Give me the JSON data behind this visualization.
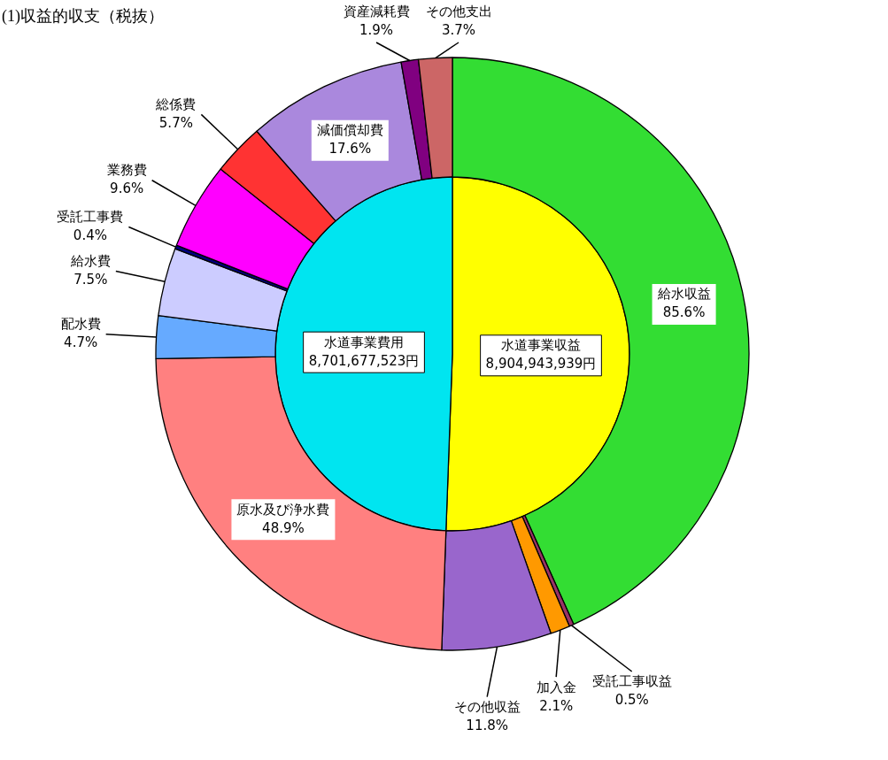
{
  "chart_data": [
    {
      "type": "pie",
      "title": "(1)収益的収支（税抜）",
      "categories": [
        "水道事業収益",
        "水道事業費用"
      ],
      "values": [
        8904943939,
        8701677523
      ],
      "colors": [
        "#ffff00",
        "#00e5f0"
      ],
      "value_labels": [
        "8,904,943,939円",
        "8,701,677,523円"
      ]
    },
    {
      "type": "donut",
      "categories": [
        "給水収益",
        "受託工事収益",
        "加入金",
        "その他収益"
      ],
      "values": [
        85.6,
        0.5,
        2.1,
        11.8
      ],
      "colors": [
        "#33dd33",
        "#993366",
        "#ff9900",
        "#9966cc"
      ],
      "value_labels": [
        "85.6%",
        "0.5%",
        "2.1%",
        "11.8%"
      ]
    },
    {
      "type": "donut",
      "categories": [
        "原水及び浄水費",
        "配水費",
        "給水費",
        "受託工事費",
        "業務費",
        "総係費",
        "減価償却費",
        "資産減耗費",
        "その他支出"
      ],
      "values": [
        48.9,
        4.7,
        7.5,
        0.4,
        9.6,
        5.7,
        17.6,
        1.9,
        3.7
      ],
      "colors": [
        "#ff8080",
        "#66aaff",
        "#ccccff",
        "#000080",
        "#ff00ff",
        "#ff3333",
        "#aa88dd",
        "#800080",
        "#cc6666"
      ],
      "value_labels": [
        "48.9%",
        "4.7%",
        "7.5%",
        "0.4%",
        "9.6%",
        "5.7%",
        "17.6%",
        "1.9%",
        "3.7%"
      ]
    }
  ]
}
